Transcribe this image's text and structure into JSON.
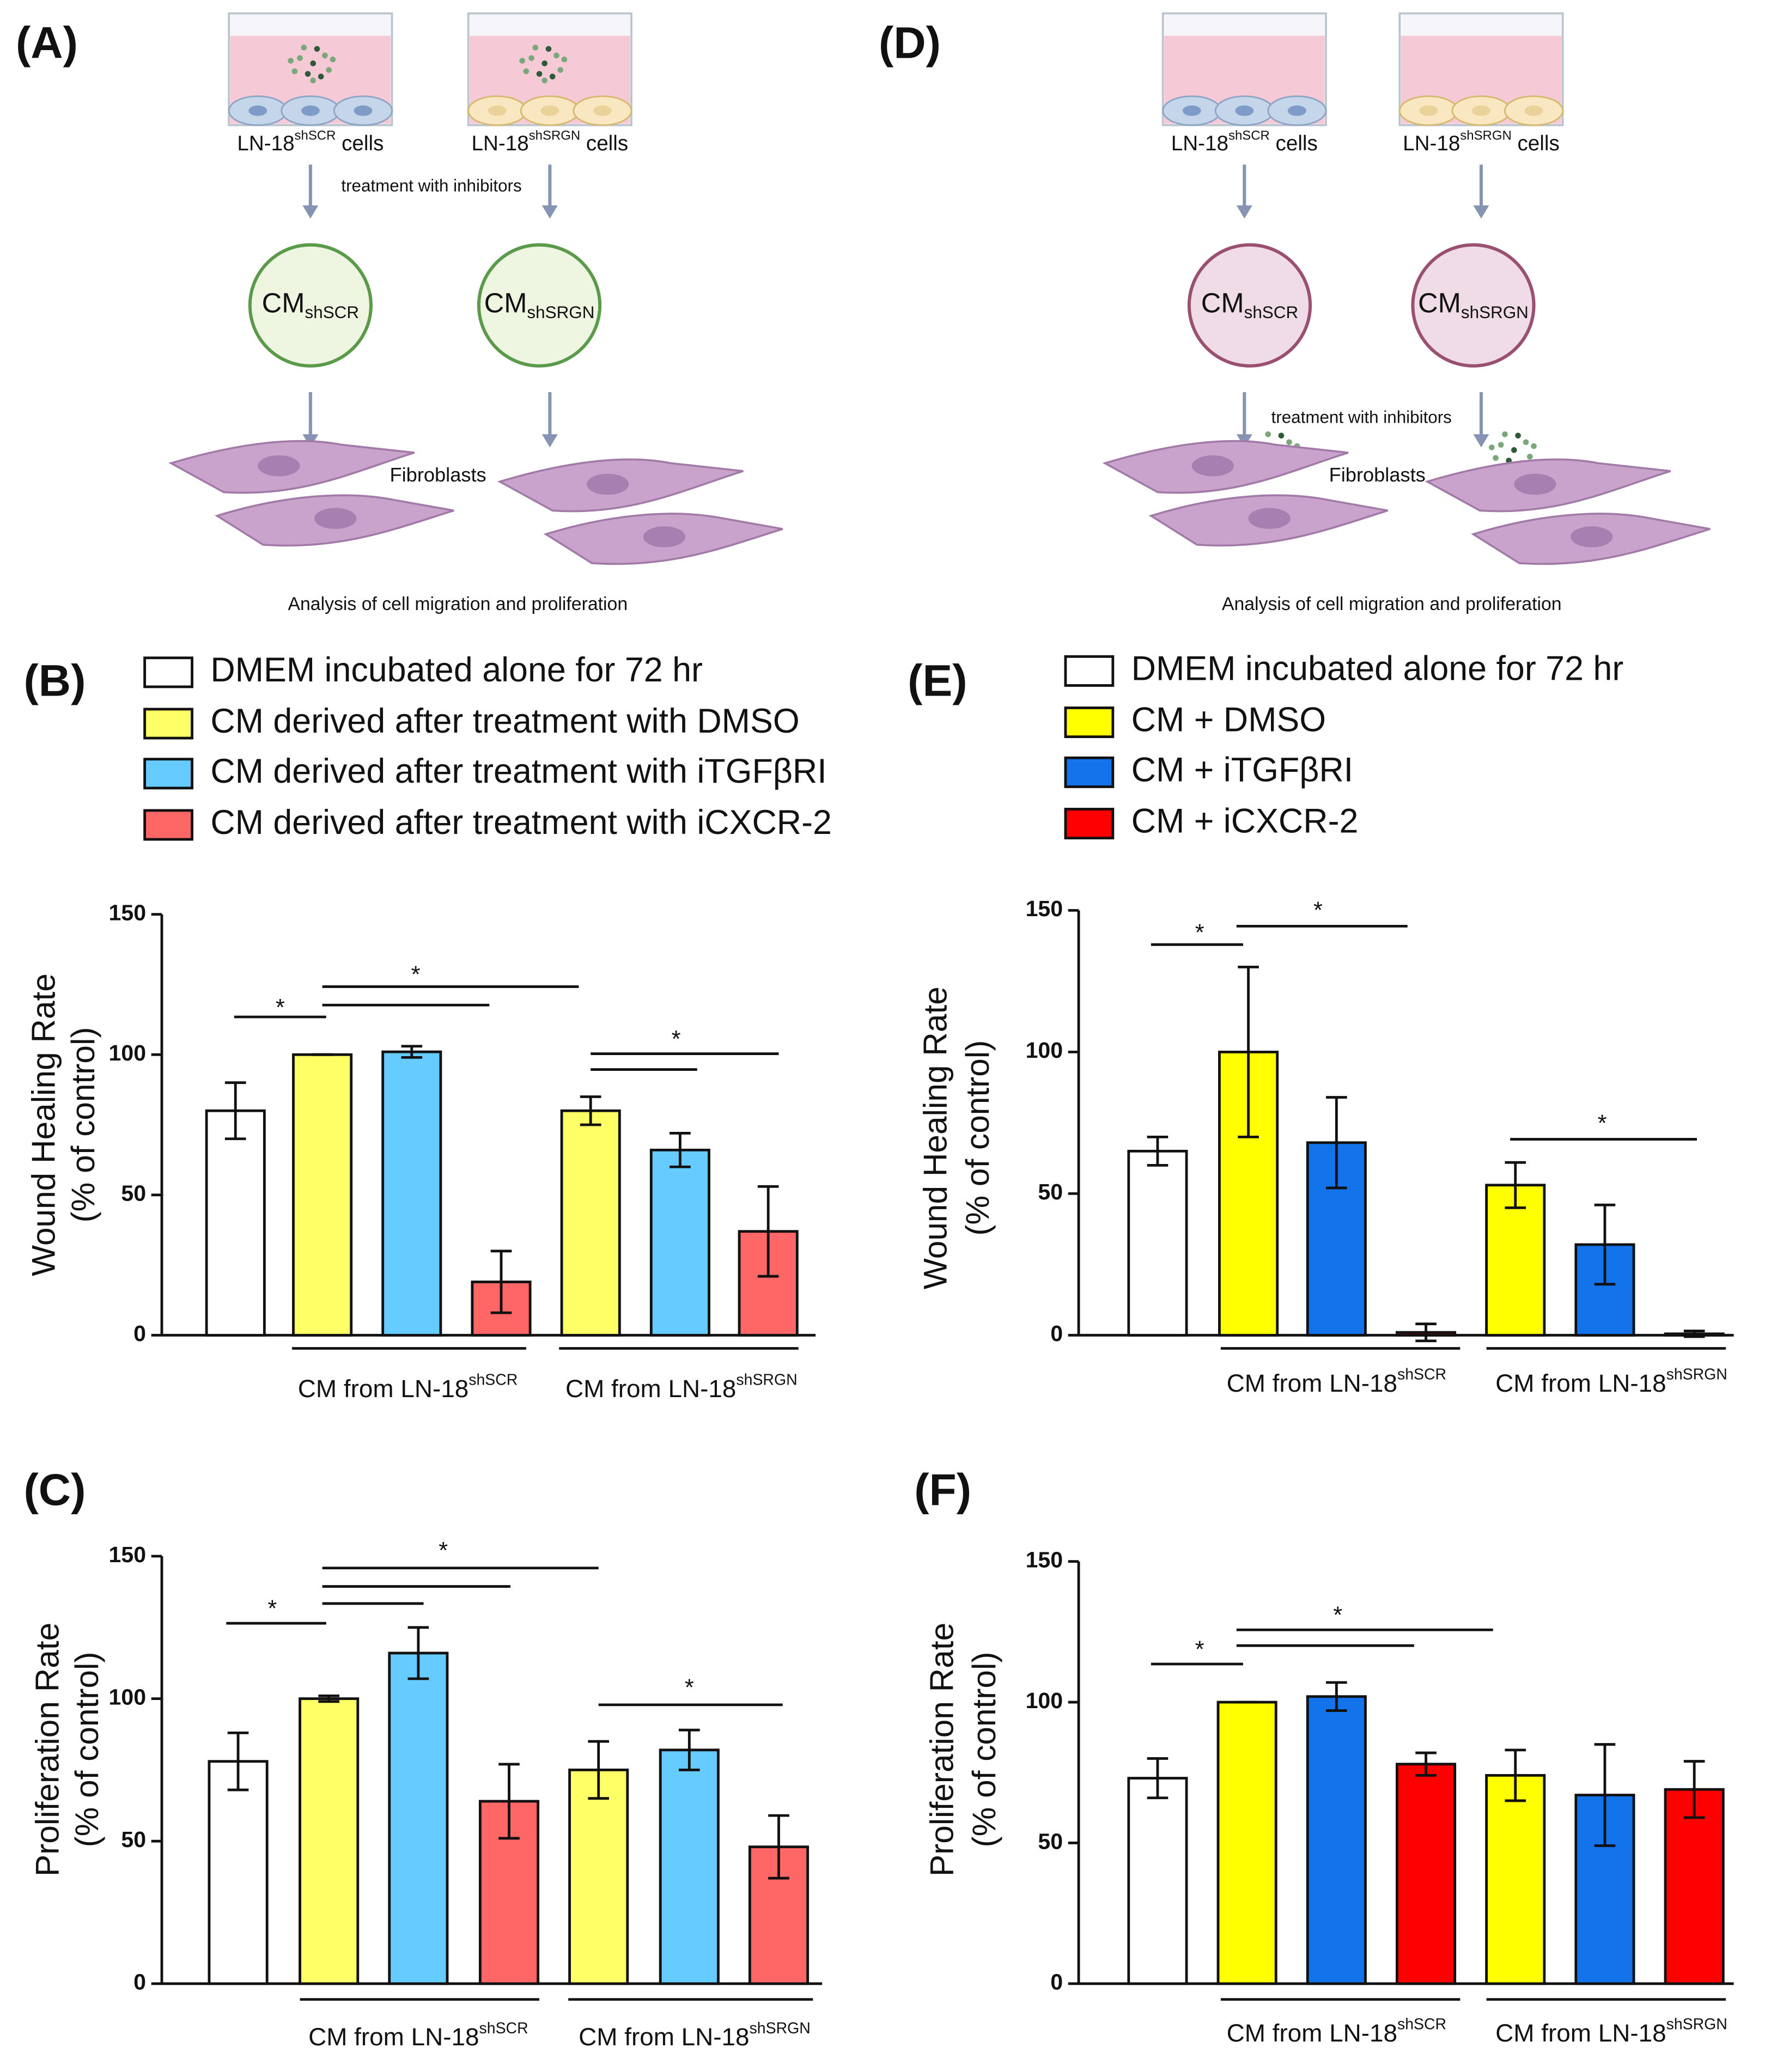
{
  "panels": [
    "(A)",
    "(B)",
    "(C)",
    "(D)",
    "(E)",
    "(F)"
  ],
  "diagrams": [
    {
      "cells": [
        [
          "LN-18",
          "shSCR",
          " cells"
        ],
        [
          "LN-18",
          "shSRGN",
          " cells"
        ]
      ],
      "treatment": "treatment with inhibitors",
      "cm": [
        [
          "CM",
          "shSCR"
        ],
        [
          "CM",
          "shSRGN"
        ]
      ],
      "fibroblasts": "Fibroblasts",
      "analysis": "Analysis of cell migration and proliferation"
    },
    {
      "cells": [
        [
          "LN-18",
          "shSCR",
          " cells"
        ],
        [
          "LN-18",
          "shSRGN",
          " cells"
        ]
      ],
      "treatment": "treatment with inhibitors",
      "cm": [
        [
          "CM",
          "shSCR"
        ],
        [
          "CM",
          "shSRGN"
        ]
      ],
      "fibroblasts": "Fibroblasts",
      "analysis": "Analysis of cell migration and proliferation"
    }
  ],
  "chart_data": [
    {
      "type": "bar",
      "ylabel": [
        "Wound Healing Rate",
        "(% of control)"
      ],
      "legend": [
        {
          "name": "DMEM incubated alone for 72 hr",
          "color": "#ffffff"
        },
        {
          "name": "CM derived after treatment with DMSO",
          "color": "#ffff66"
        },
        {
          "name": "CM derived after treatment with iTGFβRI",
          "color": "#66ccff"
        },
        {
          "name": "CM derived after treatment with iCXCR-2",
          "color": "#ff6666"
        }
      ],
      "categories": [
        null,
        null,
        null,
        null,
        null,
        null,
        null
      ],
      "values": [
        80,
        100,
        101,
        19,
        80,
        66,
        37
      ],
      "errors": [
        10,
        0,
        2,
        11,
        5,
        6,
        16
      ],
      "colors": [
        "#ffffff",
        "#ffff66",
        "#66ccff",
        "#ff6666",
        "#ffff66",
        "#66ccff",
        "#ff6666"
      ],
      "groups": [
        [
          "CM from LN-18",
          "shSCR"
        ],
        [
          "CM from LN-18",
          "shSRGN"
        ]
      ],
      "annotations": [
        "*",
        "*",
        "*"
      ],
      "ylim": [
        0,
        150
      ],
      "yticks": [
        0,
        50,
        100,
        150
      ]
    },
    {
      "type": "bar",
      "ylabel": [
        "Proliferation Rate",
        "(% of control)"
      ],
      "categories": [
        null,
        null,
        null,
        null,
        null,
        null,
        null
      ],
      "values": [
        78,
        100,
        116,
        64,
        75,
        82,
        48
      ],
      "errors": [
        10,
        1,
        9,
        13,
        10,
        7,
        11
      ],
      "colors": [
        "#ffffff",
        "#ffff66",
        "#66ccff",
        "#ff6666",
        "#ffff66",
        "#66ccff",
        "#ff6666"
      ],
      "groups": [
        [
          "CM from LN-18",
          "shSCR"
        ],
        [
          "CM from LN-18",
          "shSRGN"
        ]
      ],
      "annotations": [
        "*",
        "*",
        "*"
      ],
      "ylim": [
        0,
        150
      ],
      "yticks": [
        0,
        50,
        100,
        150
      ]
    },
    {
      "type": "bar",
      "ylabel": [
        "Wound Healing Rate",
        "(% of control)"
      ],
      "legend": [
        {
          "name": "DMEM incubated alone for 72 hr",
          "color": "#ffffff"
        },
        {
          "name": "CM + DMSO",
          "color": "#ffff00"
        },
        {
          "name": "CM + iTGFβRI",
          "color": "#1273eb"
        },
        {
          "name": "CM + iCXCR-2",
          "color": "#ff0000"
        }
      ],
      "categories": [
        null,
        null,
        null,
        null,
        null,
        null,
        null
      ],
      "values": [
        65,
        100,
        68,
        1,
        53,
        32,
        0.5
      ],
      "errors": [
        5,
        30,
        16,
        3,
        8,
        14,
        1
      ],
      "colors": [
        "#ffffff",
        "#ffff00",
        "#1273eb",
        "#ff0000",
        "#ffff00",
        "#1273eb",
        "#ff0000"
      ],
      "groups": [
        [
          "CM from LN-18",
          "shSCR"
        ],
        [
          "CM from LN-18",
          "shSRGN"
        ]
      ],
      "annotations": [
        "*",
        "*",
        "*"
      ],
      "ylim": [
        0,
        150
      ],
      "yticks": [
        0,
        50,
        100,
        150
      ]
    },
    {
      "type": "bar",
      "ylabel": [
        "Proliferation Rate",
        "(% of control)"
      ],
      "categories": [
        null,
        null,
        null,
        null,
        null,
        null,
        null
      ],
      "values": [
        73,
        100,
        102,
        78,
        74,
        67,
        69
      ],
      "errors": [
        7,
        0,
        5,
        4,
        9,
        18,
        10
      ],
      "colors": [
        "#ffffff",
        "#ffff00",
        "#1273eb",
        "#ff0000",
        "#ffff00",
        "#1273eb",
        "#ff0000"
      ],
      "groups": [
        [
          "CM from LN-18",
          "shSCR"
        ],
        [
          "CM from LN-18",
          "shSRGN"
        ]
      ],
      "annotations": [
        "*",
        "*"
      ],
      "ylim": [
        0,
        150
      ],
      "yticks": [
        0,
        50,
        100,
        150
      ]
    }
  ]
}
